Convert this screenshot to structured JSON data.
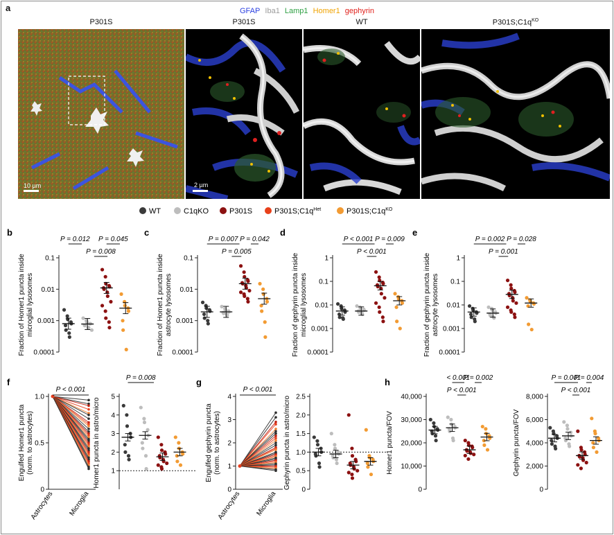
{
  "panel_a": {
    "label": "a",
    "channels": [
      {
        "name": "GFAP",
        "color": "#2a3fe0"
      },
      {
        "name": "Iba1",
        "color": "#9a9a9a"
      },
      {
        "name": "Lamp1",
        "color": "#2ea043"
      },
      {
        "name": "Homer1",
        "color": "#f0a300"
      },
      {
        "name": "gephyrin",
        "color": "#e0201b"
      }
    ],
    "images": [
      {
        "title": "P301S",
        "sup": ""
      },
      {
        "title": "P301S",
        "sup": ""
      },
      {
        "title": "WT",
        "sup": ""
      },
      {
        "title": "P301S;C1q",
        "sup": "KO"
      }
    ],
    "scale_bar_1": "10 µm",
    "scale_bar_2": "2 µm"
  },
  "group_legend": [
    {
      "name": "WT",
      "sup": "",
      "color": "#3a3a3a"
    },
    {
      "name": "C1qKO",
      "sup": "",
      "color": "#bdbdbd"
    },
    {
      "name": "P301S",
      "sup": "",
      "color": "#8c1111"
    },
    {
      "name": "P301S;C1q",
      "sup": "Het",
      "color": "#e8401a"
    },
    {
      "name": "P301S;C1q",
      "sup": "KO",
      "color": "#f29b33"
    }
  ],
  "chart_data": [
    {
      "panel": "b",
      "type": "scatter",
      "scale": "log",
      "ylabel_lines": [
        "Fraction of Homer1 puncta inside",
        "microglial lysosomes"
      ],
      "ticks": [
        "0.0001",
        "0.001",
        "0.01",
        "0.1"
      ],
      "ylim": [
        0.0001,
        0.1
      ],
      "groups": [
        {
          "name": "WT",
          "mean": 0.0008,
          "values": [
            0.0022,
            0.0014,
            0.0011,
            0.0009,
            0.0008,
            0.0007,
            0.0005,
            0.0004,
            0.0003
          ]
        },
        {
          "name": "C1qKO",
          "mean": 0.00078,
          "values": [
            0.0012,
            0.001,
            0.0009,
            0.0008,
            0.0008,
            0.0007,
            0.0007,
            0.0006,
            0.0006,
            0.0005
          ]
        },
        {
          "name": "P301S",
          "mean": 0.011,
          "values": [
            0.042,
            0.025,
            0.015,
            0.013,
            0.012,
            0.011,
            0.01,
            0.008,
            0.006,
            0.004,
            0.003,
            0.002,
            0.0012,
            0.0009,
            0.0006
          ]
        },
        {
          "name": "P301S;C1q KO",
          "mean": 0.0025,
          "values": [
            0.007,
            0.004,
            0.003,
            0.0025,
            0.002,
            0.001,
            0.0005,
            0.00012
          ]
        }
      ],
      "pvalues": [
        "P = 0.012",
        "P = 0.045",
        "P = 0.008"
      ]
    },
    {
      "panel": "c",
      "type": "scatter",
      "scale": "log",
      "ylabel_lines": [
        "Fraction of Homer1 puncta inside",
        "astrocyte lysosomes"
      ],
      "ticks": [
        "0.0001",
        "0.001",
        "0.01",
        "0.1"
      ],
      "ylim": [
        0.0001,
        0.1
      ],
      "groups": [
        {
          "name": "WT",
          "mean": 0.0019,
          "values": [
            0.0038,
            0.003,
            0.0025,
            0.0022,
            0.002,
            0.0016,
            0.0012,
            0.001,
            0.0008
          ]
        },
        {
          "name": "C1qKO",
          "mean": 0.0019,
          "values": [
            0.0028,
            0.0024,
            0.0022,
            0.002,
            0.0019,
            0.0018,
            0.0017,
            0.0016,
            0.0015
          ]
        },
        {
          "name": "P301S",
          "mean": 0.015,
          "values": [
            0.055,
            0.035,
            0.025,
            0.02,
            0.018,
            0.016,
            0.015,
            0.013,
            0.011,
            0.009,
            0.008,
            0.007,
            0.006,
            0.005,
            0.004
          ]
        },
        {
          "name": "P301S;C1q KO",
          "mean": 0.005,
          "values": [
            0.015,
            0.01,
            0.007,
            0.005,
            0.004,
            0.003,
            0.002,
            0.0009,
            0.0003
          ]
        }
      ],
      "pvalues": [
        "P = 0.007",
        "P = 0.042",
        "P = 0.005"
      ]
    },
    {
      "panel": "d",
      "type": "scatter",
      "scale": "log",
      "ylabel_lines": [
        "Fraction of gephyrin puncta inside",
        "microglial lysosomes"
      ],
      "ticks": [
        "0.0001",
        "0.001",
        "0.01",
        "0.1",
        "1"
      ],
      "ylim": [
        0.0001,
        1
      ],
      "groups": [
        {
          "name": "WT",
          "mean": 0.0055,
          "values": [
            0.011,
            0.009,
            0.007,
            0.006,
            0.005,
            0.004,
            0.003,
            0.0028,
            0.0025
          ]
        },
        {
          "name": "C1qKO",
          "mean": 0.0055,
          "values": [
            0.009,
            0.008,
            0.007,
            0.0065,
            0.006,
            0.0055,
            0.005,
            0.0045,
            0.004
          ]
        },
        {
          "name": "P301S",
          "mean": 0.065,
          "values": [
            0.25,
            0.15,
            0.11,
            0.09,
            0.08,
            0.07,
            0.06,
            0.05,
            0.03,
            0.02,
            0.012,
            0.008,
            0.005,
            0.003,
            0.002
          ]
        },
        {
          "name": "P301S;C1q KO",
          "mean": 0.015,
          "values": [
            0.03,
            0.022,
            0.018,
            0.015,
            0.012,
            0.008,
            0.002,
            0.001
          ]
        }
      ],
      "pvalues": [
        "P < 0.001",
        "P = 0.009",
        "P < 0.001"
      ]
    },
    {
      "panel": "e",
      "type": "scatter",
      "scale": "log",
      "ylabel_lines": [
        "Fraction of gephyrin puncta inside",
        "astrocyte lysosomes"
      ],
      "ticks": [
        "0.0001",
        "0.001",
        "0.01",
        "0.1",
        "1"
      ],
      "ylim": [
        0.0001,
        1
      ],
      "groups": [
        {
          "name": "WT",
          "mean": 0.005,
          "values": [
            0.009,
            0.007,
            0.006,
            0.005,
            0.0045,
            0.004,
            0.003,
            0.0025,
            0.002
          ]
        },
        {
          "name": "C1qKO",
          "mean": 0.0045,
          "values": [
            0.008,
            0.007,
            0.006,
            0.005,
            0.0045,
            0.004,
            0.0035,
            0.003,
            0.0028
          ]
        },
        {
          "name": "P301S",
          "mean": 0.028,
          "values": [
            0.11,
            0.07,
            0.05,
            0.04,
            0.035,
            0.03,
            0.025,
            0.02,
            0.015,
            0.012,
            0.008,
            0.006,
            0.005,
            0.004,
            0.003
          ]
        },
        {
          "name": "P301S;C1q KO",
          "mean": 0.012,
          "values": [
            0.02,
            0.016,
            0.014,
            0.012,
            0.011,
            0.009,
            0.0015,
            0.0009
          ]
        }
      ],
      "pvalues": [
        "P = 0.002",
        "P = 0.028",
        "P = 0.001"
      ]
    },
    {
      "panel": "f",
      "type": "line",
      "ylabel_lines": [
        "Engulfed Homer1 puncta",
        "(norm. to astrocytes)"
      ],
      "categories": [
        "Astrocytes",
        "Microglia"
      ],
      "ticks": [
        "0",
        "0.5",
        "1.0"
      ],
      "ylim": [
        0,
        1
      ],
      "pvalue": "P < 0.001",
      "pairs_end": [
        0.96,
        0.92,
        0.9,
        0.86,
        0.82,
        0.8,
        0.76,
        0.72,
        0.7,
        0.68,
        0.65,
        0.62,
        0.6,
        0.58,
        0.56,
        0.54,
        0.52,
        0.5,
        0.48,
        0.46,
        0.44,
        0.42,
        0.4,
        0.38,
        0.36,
        0.34,
        0.32,
        0.3,
        0.28,
        0.26,
        0.24,
        0.22
      ]
    },
    {
      "panel": "f2",
      "type": "scatter",
      "ylabel_lines": [
        "Homer1 puncta in astro/micro"
      ],
      "ticks": [
        "1",
        "2",
        "3",
        "4",
        "5"
      ],
      "ylim": [
        0,
        5
      ],
      "ref_line": 1,
      "groups": [
        {
          "name": "WT",
          "mean": 2.8,
          "values": [
            4.5,
            4.0,
            3.4,
            3.0,
            2.8,
            2.4,
            2.0,
            1.8,
            1.6
          ]
        },
        {
          "name": "C1qKO",
          "mean": 2.9,
          "values": [
            4.4,
            3.8,
            3.6,
            3.2,
            2.9,
            2.5,
            2.2,
            1.8,
            1.1
          ]
        },
        {
          "name": "P301S",
          "mean": 1.75,
          "values": [
            2.8,
            2.4,
            2.1,
            2.0,
            1.9,
            1.8,
            1.7,
            1.6,
            1.5,
            1.4,
            1.3,
            1.2,
            1.1
          ]
        },
        {
          "name": "P301S;C1q KO",
          "mean": 2.0,
          "values": [
            2.8,
            2.5,
            2.2,
            2.0,
            1.9,
            1.8,
            1.5,
            1.3
          ]
        }
      ],
      "pvalues": [
        "P = 0.008"
      ]
    },
    {
      "panel": "g",
      "type": "line",
      "ylabel_lines": [
        "Engulfed gephyrin puncta",
        "(norm. to astrocytes)"
      ],
      "categories": [
        "Astrocytes",
        "Microglia"
      ],
      "ticks": [
        "0",
        "1",
        "2",
        "3",
        "4"
      ],
      "ylim": [
        0,
        4
      ],
      "pvalue": "P < 0.001",
      "pairs_end": [
        3.3,
        3.1,
        2.9,
        2.8,
        2.6,
        2.5,
        2.4,
        2.3,
        2.2,
        2.1,
        2.0,
        1.9,
        1.8,
        1.75,
        1.7,
        1.6,
        1.55,
        1.5,
        1.45,
        1.4,
        1.35,
        1.3,
        1.25,
        1.2,
        1.15,
        1.1,
        1.05,
        1.0,
        0.95,
        0.9,
        0.85,
        0.8
      ]
    },
    {
      "panel": "g2",
      "type": "scatter",
      "ylabel_lines": [
        "Gephyrin puncta in astro/micro"
      ],
      "ticks": [
        "0",
        "0.5",
        "1.0",
        "1.5",
        "2.0",
        "2.5"
      ],
      "ylim": [
        0,
        2.5
      ],
      "ref_line": 1,
      "groups": [
        {
          "name": "WT",
          "mean": 1.0,
          "values": [
            1.4,
            1.3,
            1.2,
            1.1,
            1.0,
            0.95,
            0.9,
            0.7,
            0.6
          ]
        },
        {
          "name": "C1qKO",
          "mean": 0.95,
          "values": [
            1.5,
            1.2,
            1.1,
            1.0,
            0.95,
            0.9,
            0.85,
            0.8,
            0.7
          ]
        },
        {
          "name": "P301S",
          "mean": 0.65,
          "values": [
            2.0,
            1.1,
            0.9,
            0.8,
            0.75,
            0.7,
            0.65,
            0.6,
            0.55,
            0.5,
            0.45,
            0.4,
            0.3
          ]
        },
        {
          "name": "P301S;C1q KO",
          "mean": 0.75,
          "values": [
            1.6,
            0.9,
            0.85,
            0.8,
            0.75,
            0.7,
            0.6,
            0.4
          ]
        }
      ]
    },
    {
      "panel": "h",
      "type": "scatter",
      "ylabel_lines": [
        "Homer1 puncta/FOV"
      ],
      "ticks": [
        "0",
        "10,000",
        "20,000",
        "30,000",
        "40,000"
      ],
      "ylim": [
        0,
        40000
      ],
      "groups": [
        {
          "name": "WT",
          "mean": 25500,
          "values": [
            30000,
            28500,
            27000,
            26000,
            25500,
            25000,
            24000,
            23000,
            21000
          ]
        },
        {
          "name": "C1qKO",
          "mean": 26500,
          "values": [
            31000,
            30000,
            28000,
            27000,
            26500,
            26000,
            25000,
            22000,
            21000
          ]
        },
        {
          "name": "P301S",
          "mean": 17000,
          "values": [
            21000,
            20000,
            19000,
            18500,
            18000,
            17000,
            16500,
            16000,
            15500,
            15000,
            14500,
            13000
          ]
        },
        {
          "name": "P301S;C1q KO",
          "mean": 22500,
          "values": [
            27000,
            26000,
            24000,
            23000,
            22000,
            21000,
            19000,
            17000
          ]
        }
      ],
      "pvalues": [
        "< 0.001",
        "P = 0.002",
        "P < 0.001"
      ]
    },
    {
      "panel": "h2",
      "type": "scatter",
      "ylabel_lines": [
        "Gephyrin puncta/FOV"
      ],
      "ticks": [
        "0",
        "2,000",
        "4,000",
        "6,000",
        "8,000"
      ],
      "ylim": [
        0,
        8000
      ],
      "groups": [
        {
          "name": "WT",
          "mean": 4400,
          "values": [
            5300,
            5000,
            4800,
            4600,
            4400,
            4200,
            3900,
            3700,
            3500
          ]
        },
        {
          "name": "C1qKO",
          "mean": 4600,
          "values": [
            5800,
            5500,
            5200,
            4900,
            4600,
            4400,
            4200,
            3900,
            3700
          ]
        },
        {
          "name": "P301S",
          "mean": 2900,
          "values": [
            5000,
            3600,
            3400,
            3200,
            3000,
            2900,
            2800,
            2700,
            2500,
            2300,
            2100,
            1800
          ]
        },
        {
          "name": "P301S;C1q KO",
          "mean": 4200,
          "values": [
            6100,
            5000,
            4800,
            4400,
            4200,
            4000,
            3600,
            3200
          ]
        }
      ],
      "pvalues": [
        "P = 0.001",
        "P = 0.004",
        "P < 0.001"
      ]
    }
  ]
}
